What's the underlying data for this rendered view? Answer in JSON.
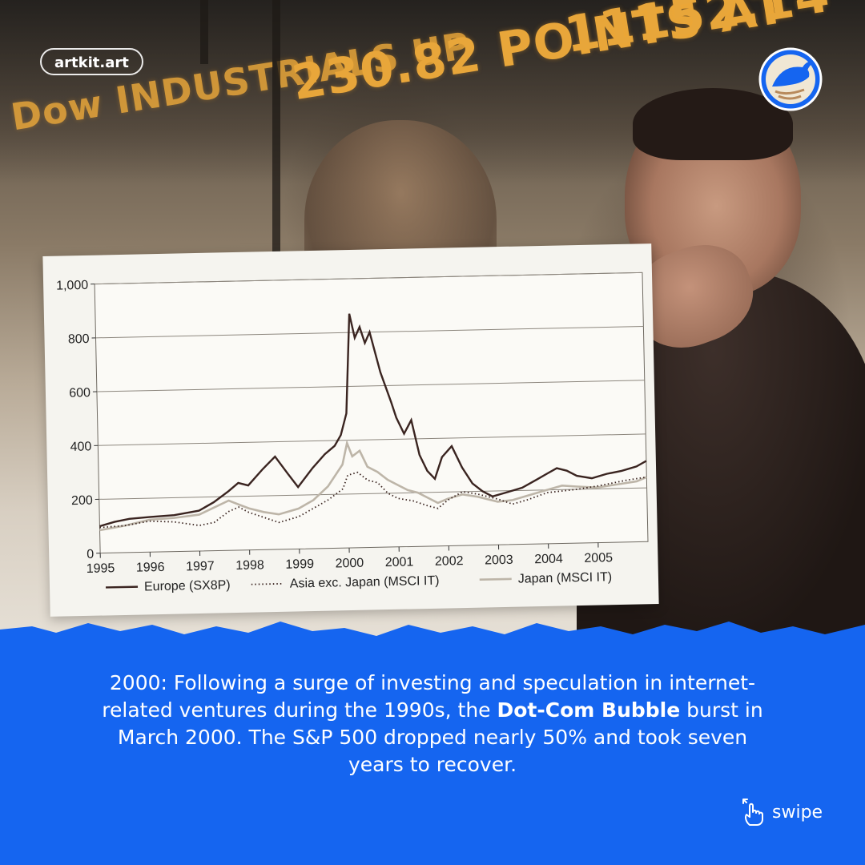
{
  "brand": {
    "pill_text": "artkit.art"
  },
  "photo": {
    "ticker_text_1": "Dow INDUSTRIALS UP",
    "ticker_text_2": "230.82 POINTS AT",
    "ticker_text_3": "11152.14"
  },
  "caption": {
    "part1": "2000: Following a surge of investing and speculation in internet-related ventures during the 1990s, the ",
    "bold": "Dot-Com Bubble",
    "part2": " burst in March 2000. The S&P 500 dropped nearly 50% and took seven years to recover."
  },
  "swipe": {
    "label": "swipe",
    "icon": "hand-swipe-icon"
  },
  "colors": {
    "blue": "#1565f0",
    "europe": "#3a2420",
    "asia": "#3a2420",
    "japan": "#bdb5a8"
  },
  "chart_data": {
    "type": "line",
    "xlim": [
      1995,
      2006
    ],
    "ylim": [
      0,
      1000
    ],
    "yticks": [
      0,
      200,
      400,
      600,
      800,
      1000
    ],
    "ytick_labels": [
      "0",
      "200",
      "400",
      "600",
      "800",
      "1,000"
    ],
    "xticks": [
      1995,
      1996,
      1997,
      1998,
      1999,
      2000,
      2001,
      2002,
      2003,
      2004,
      2005
    ],
    "xtick_labels": [
      "1995",
      "1996",
      "1997",
      "1998",
      "1999",
      "2000",
      "2001",
      "2002",
      "2003",
      "2004",
      "2005"
    ],
    "grid": true,
    "legend_position": "bottom",
    "series": [
      {
        "name": "Europe (SX8P)",
        "style": "solid",
        "x": [
          1995.0,
          1995.3,
          1995.6,
          1996.0,
          1996.5,
          1997.0,
          1997.3,
          1997.6,
          1997.8,
          1998.0,
          1998.3,
          1998.55,
          1998.8,
          1999.0,
          1999.3,
          1999.55,
          1999.75,
          1999.88,
          2000.0,
          2000.1,
          2000.2,
          2000.3,
          2000.4,
          2000.5,
          2000.7,
          2000.9,
          2001.0,
          2001.15,
          2001.3,
          2001.45,
          2001.6,
          2001.75,
          2001.9,
          2002.1,
          2002.3,
          2002.5,
          2002.7,
          2002.9,
          2003.1,
          2003.3,
          2003.5,
          2003.8,
          2004.0,
          2004.2,
          2004.4,
          2004.6,
          2004.9,
          2005.2,
          2005.5,
          2005.8,
          2006.0
        ],
        "values": [
          100,
          115,
          125,
          130,
          135,
          150,
          180,
          220,
          250,
          240,
          300,
          345,
          280,
          230,
          300,
          350,
          380,
          420,
          500,
          870,
          780,
          820,
          760,
          800,
          650,
          540,
          480,
          420,
          470,
          340,
          280,
          250,
          330,
          370,
          290,
          230,
          200,
          180,
          190,
          200,
          210,
          240,
          260,
          280,
          270,
          250,
          240,
          255,
          265,
          280,
          300
        ]
      },
      {
        "name": "Asia exc. Japan (MSCI IT)",
        "style": "dotted",
        "x": [
          1995.0,
          1995.5,
          1996.0,
          1996.5,
          1997.0,
          1997.3,
          1997.6,
          1997.8,
          1998.0,
          1998.3,
          1998.6,
          1999.0,
          1999.3,
          1999.6,
          1999.9,
          2000.0,
          2000.2,
          2000.4,
          2000.6,
          2000.8,
          2001.0,
          2001.3,
          2001.6,
          2001.8,
          2002.0,
          2002.3,
          2002.6,
          2003.0,
          2003.3,
          2003.6,
          2004.0,
          2004.3,
          2004.6,
          2005.0,
          2005.3,
          2005.6,
          2006.0
        ],
        "values": [
          95,
          100,
          115,
          110,
          95,
          105,
          145,
          160,
          140,
          120,
          100,
          120,
          150,
          180,
          220,
          270,
          280,
          250,
          240,
          200,
          180,
          170,
          150,
          140,
          170,
          200,
          190,
          170,
          150,
          165,
          190,
          195,
          200,
          210,
          220,
          230,
          240
        ]
      },
      {
        "name": "Japan (MSCI IT)",
        "style": "solid-light",
        "x": [
          1995.0,
          1995.5,
          1996.0,
          1996.5,
          1997.0,
          1997.3,
          1997.6,
          1997.8,
          1998.0,
          1998.3,
          1998.6,
          1999.0,
          1999.3,
          1999.6,
          1999.9,
          2000.0,
          2000.1,
          2000.25,
          2000.4,
          2000.6,
          2000.8,
          2001.0,
          2001.2,
          2001.4,
          2001.6,
          2001.8,
          2002.0,
          2002.3,
          2002.6,
          2003.0,
          2003.3,
          2003.6,
          2004.0,
          2004.3,
          2004.6,
          2005.0,
          2005.4,
          2005.8,
          2006.0
        ],
        "values": [
          85,
          100,
          120,
          125,
          135,
          160,
          185,
          170,
          155,
          140,
          130,
          150,
          180,
          230,
          310,
          390,
          340,
          360,
          300,
          280,
          250,
          230,
          210,
          200,
          180,
          160,
          175,
          190,
          180,
          160,
          165,
          180,
          200,
          215,
          210,
          205,
          215,
          225,
          240
        ]
      }
    ]
  }
}
